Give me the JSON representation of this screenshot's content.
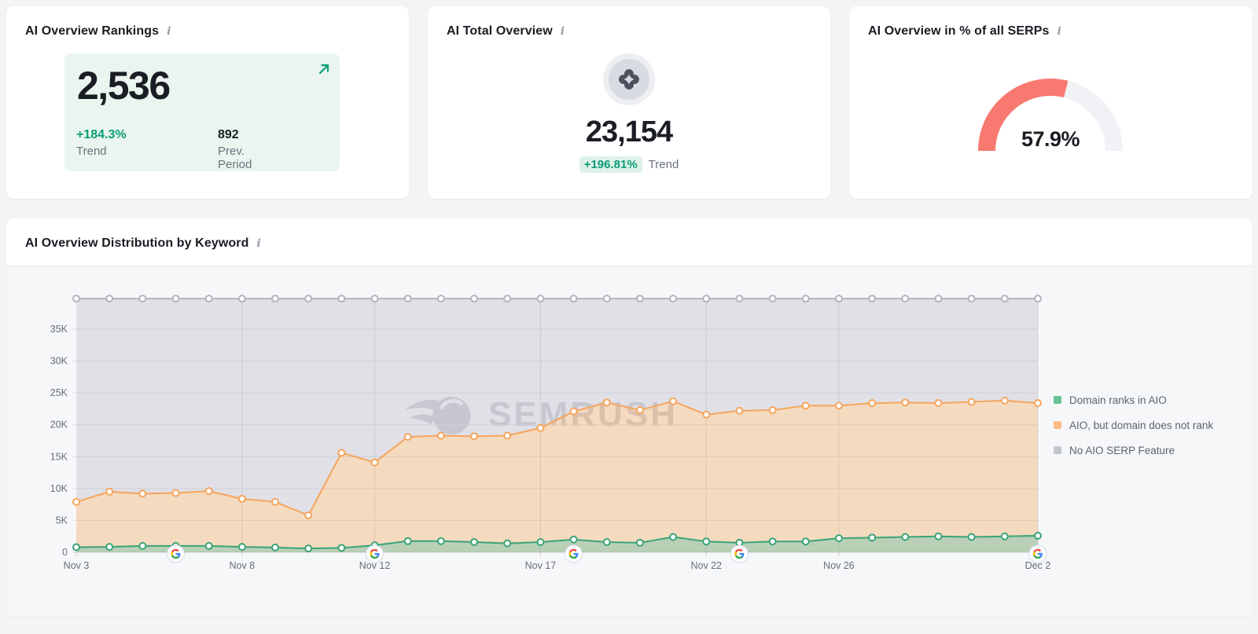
{
  "icons": {
    "info": "i"
  },
  "cards": {
    "rankings": {
      "title": "AI Overview Rankings",
      "value": "2,536",
      "trend_value": "+184.3%",
      "trend_label": "Trend",
      "prev_value": "892",
      "prev_label": "Prev. Period",
      "accent_color": "#0c9d78",
      "box_bg": "#e9f5ee"
    },
    "total": {
      "title": "AI Total Overview",
      "value": "23,154",
      "trend_value": "+196.81%",
      "trend_label": "Trend"
    },
    "serps": {
      "title": "AI Overview in % of all SERPs",
      "value": "57.9%",
      "percent": 57.9,
      "gauge_color": "#f8796f",
      "track_color": "#f1f2f6"
    }
  },
  "distribution": {
    "title": "AI Overview Distribution by Keyword",
    "watermark": "SEMRUSH",
    "legend": [
      {
        "label": "Domain ranks in AIO",
        "color": "#6ac295"
      },
      {
        "label": "AIO, but domain does not rank",
        "color": "#fbbd84"
      },
      {
        "label": "No AIO SERP Feature",
        "color": "#c3c5ce"
      }
    ]
  },
  "chart_data": {
    "type": "area",
    "stacked": true,
    "title": "AI Overview Distribution by Keyword",
    "x": [
      "Nov 3",
      "Nov 4",
      "Nov 5",
      "Nov 6",
      "Nov 7",
      "Nov 8",
      "Nov 9",
      "Nov 10",
      "Nov 11",
      "Nov 12",
      "Nov 13",
      "Nov 14",
      "Nov 15",
      "Nov 16",
      "Nov 17",
      "Nov 18",
      "Nov 19",
      "Nov 20",
      "Nov 21",
      "Nov 22",
      "Nov 23",
      "Nov 24",
      "Nov 25",
      "Nov 26",
      "Nov 27",
      "Nov 28",
      "Nov 29",
      "Nov 30",
      "Dec 1",
      "Dec 2"
    ],
    "x_tick_labels": [
      "Nov 3",
      "Nov 8",
      "Nov 12",
      "Nov 17",
      "Nov 22",
      "Nov 26",
      "Dec 2"
    ],
    "x_tick_indices": [
      0,
      5,
      9,
      14,
      19,
      23,
      29
    ],
    "y_ticks": [
      "0",
      "5K",
      "10K",
      "15K",
      "20K",
      "25K",
      "30K",
      "35K"
    ],
    "y_tick_values": [
      0,
      5000,
      10000,
      15000,
      20000,
      25000,
      30000,
      35000
    ],
    "ylim": [
      0,
      40600
    ],
    "total_per_day": 39800,
    "series": [
      {
        "name": "Domain ranks in AIO",
        "line_color": "#3aa476",
        "fill_color": "rgba(95,150,85,0.40)",
        "values": [
          800,
          850,
          1000,
          1000,
          1000,
          850,
          750,
          600,
          700,
          1100,
          1750,
          1750,
          1600,
          1400,
          1600,
          2000,
          1600,
          1500,
          2400,
          1700,
          1500,
          1700,
          1700,
          2200,
          2300,
          2400,
          2500,
          2400,
          2500,
          2600
        ]
      },
      {
        "name": "AIO, but domain does not rank",
        "line_color": "#f5a55c",
        "fill_color": "rgba(242,162,84,0.35)",
        "values": [
          7100,
          8650,
          8200,
          8300,
          8600,
          7550,
          7150,
          5200,
          14900,
          13000,
          16350,
          16550,
          16600,
          16900,
          17900,
          20100,
          21900,
          20800,
          21300,
          19900,
          20700,
          20600,
          21300,
          20800,
          21100,
          21100,
          20900,
          21200,
          21300,
          20800
        ]
      },
      {
        "name": "No AIO SERP Feature",
        "line_color": "#b2b4bf",
        "fill_color": "rgba(176,178,189,0.32)",
        "values": [
          31900,
          30300,
          30600,
          30500,
          30200,
          31400,
          31900,
          34000,
          24200,
          25700,
          21700,
          21500,
          21600,
          21500,
          20300,
          17700,
          16300,
          17500,
          16100,
          18200,
          17600,
          17500,
          16800,
          16800,
          16400,
          16300,
          16400,
          16200,
          16000,
          16400
        ]
      }
    ],
    "google_update_dates": [
      "Nov 6",
      "Nov 12",
      "Nov 18",
      "Nov 23",
      "Dec 2"
    ],
    "legend_position": "right",
    "grid": true
  }
}
